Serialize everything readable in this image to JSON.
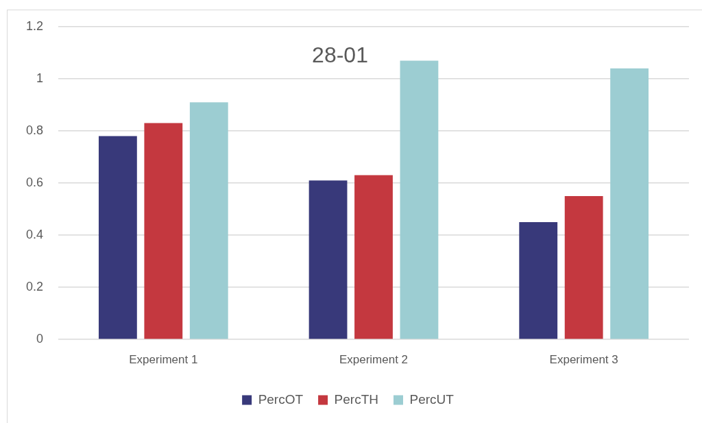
{
  "chart_data": {
    "type": "bar",
    "title": "28-01",
    "categories": [
      "Experiment 1",
      "Experiment 2",
      "Experiment 3"
    ],
    "series": [
      {
        "name": "PercOT",
        "color": "#38397a",
        "values": [
          0.78,
          0.61,
          0.45
        ]
      },
      {
        "name": "PercTH",
        "color": "#c4383f",
        "values": [
          0.83,
          0.63,
          0.55
        ]
      },
      {
        "name": "PercUT",
        "color": "#9ccdd2",
        "values": [
          0.91,
          1.07,
          1.04
        ]
      }
    ],
    "ylim": [
      0,
      1.2
    ],
    "yticks": [
      0,
      0.2,
      0.4,
      0.6,
      0.8,
      1,
      1.2
    ],
    "grid": "y",
    "legend": "bottom"
  }
}
